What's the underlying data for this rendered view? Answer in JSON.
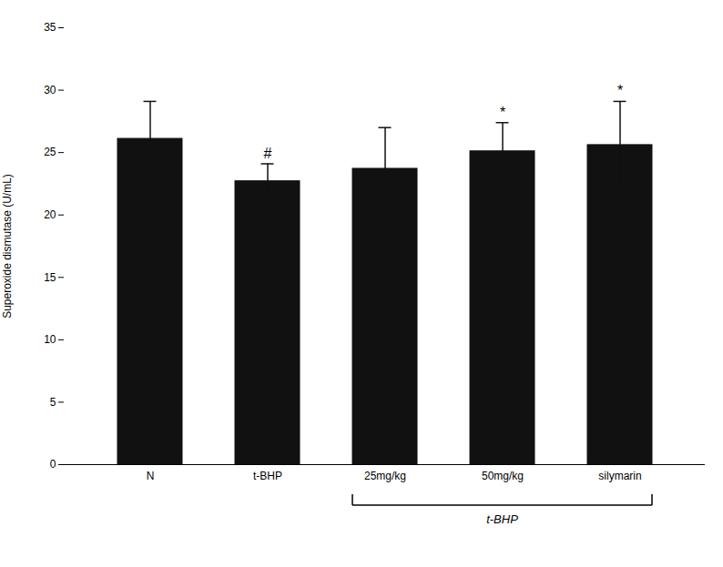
{
  "chart_data": {
    "type": "bar",
    "categories": [
      "N",
      "t-BHP",
      "25mg/kg",
      "50mg/kg",
      "silymarin"
    ],
    "values": [
      26.1,
      22.7,
      23.7,
      25.1,
      25.6
    ],
    "errors": [
      3.0,
      1.4,
      3.3,
      2.3,
      3.5
    ],
    "color": "#111111",
    "ylabel": "Superoxide dismutase (U/mL)",
    "ylim": [
      0,
      35
    ],
    "yticks": [
      0,
      5,
      10,
      15,
      20,
      25,
      30,
      35
    ],
    "grid": false,
    "annotations": [
      {
        "category": "t-BHP",
        "text": "#"
      },
      {
        "category": "50mg/kg",
        "text": "*"
      },
      {
        "category": "silymarin",
        "text": "*"
      }
    ],
    "bracket": {
      "label": "t-BHP",
      "categories": [
        "25mg/kg",
        "50mg/kg",
        "silymarin"
      ]
    }
  }
}
